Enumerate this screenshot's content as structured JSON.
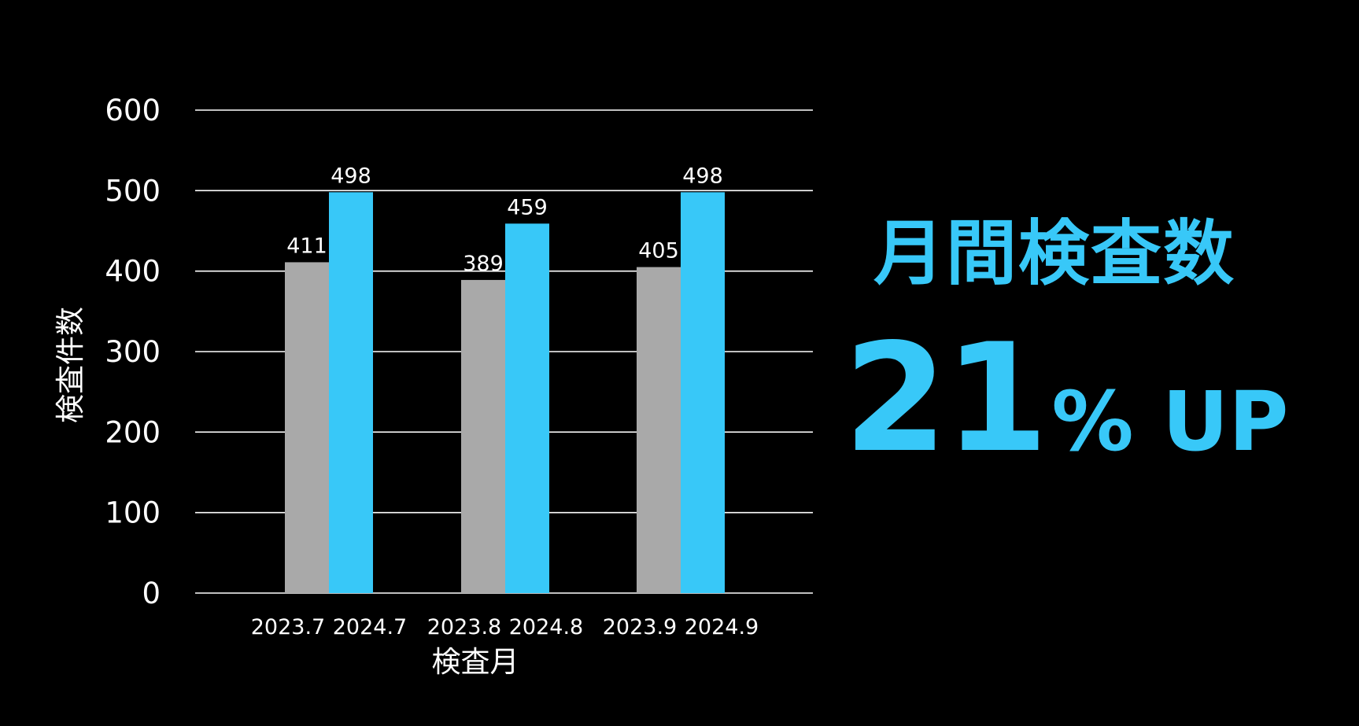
{
  "chart_data": {
    "type": "bar",
    "categories": [
      "",
      "",
      ""
    ],
    "series": [
      {
        "x_labels": [
          "2023.7",
          "2023.8",
          "2023.9"
        ],
        "values": [
          411,
          389,
          405
        ],
        "color": "#a9a9a9"
      },
      {
        "x_labels": [
          "2024.7",
          "2024.8",
          "2024.9"
        ],
        "values": [
          498,
          459,
          498
        ],
        "color": "#38c8f8"
      }
    ],
    "ylabel": "検査件数",
    "xlabel": "検査月",
    "ylim": [
      0,
      600
    ],
    "yticks": [
      0,
      100,
      200,
      300,
      400,
      500,
      600
    ],
    "grid": true,
    "data_labels": true
  },
  "headline": {
    "title": "月間検査数",
    "number": "21",
    "suffix": "% UP",
    "color": "#38c8f8"
  },
  "theme": {
    "background": "#000000",
    "text": "#ffffff",
    "gridline": "#ffffff"
  }
}
